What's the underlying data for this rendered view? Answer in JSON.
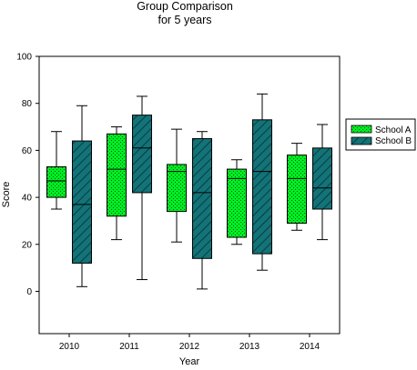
{
  "chart_data": {
    "type": "box",
    "title": [
      "Group Comparison",
      "for 5 years"
    ],
    "xlabel": "Year",
    "ylabel": "Score",
    "ylim": [
      -18,
      100
    ],
    "yticks": [
      0,
      20,
      40,
      60,
      80,
      100
    ],
    "categories": [
      "2010",
      "2011",
      "2012",
      "2013",
      "2014"
    ],
    "grid": false,
    "legend_position": "right",
    "series": [
      {
        "name": "School A",
        "color": "#00ee22",
        "pattern": "dots",
        "boxes": [
          {
            "min": 35,
            "q1": 40,
            "median": 47,
            "q3": 53,
            "max": 68
          },
          {
            "min": 22,
            "q1": 32,
            "median": 52,
            "q3": 67,
            "max": 70
          },
          {
            "min": 21,
            "q1": 34,
            "median": 51,
            "q3": 54,
            "max": 69
          },
          {
            "min": 20,
            "q1": 23,
            "median": 48,
            "q3": 52,
            "max": 56
          },
          {
            "min": 26,
            "q1": 29,
            "median": 48,
            "q3": 58,
            "max": 63
          }
        ]
      },
      {
        "name": "School B",
        "color": "#127378",
        "pattern": "diagonal-hatch",
        "boxes": [
          {
            "min": 2,
            "q1": 12,
            "median": 37,
            "q3": 64,
            "max": 79
          },
          {
            "min": 5,
            "q1": 42,
            "median": 61,
            "q3": 75,
            "max": 83
          },
          {
            "min": 1,
            "q1": 14,
            "median": 42,
            "q3": 65,
            "max": 68
          },
          {
            "min": 9,
            "q1": 16,
            "median": 51,
            "q3": 73,
            "max": 84
          },
          {
            "min": 22,
            "q1": 35,
            "median": 44,
            "q3": 61,
            "max": 71
          }
        ]
      }
    ]
  }
}
